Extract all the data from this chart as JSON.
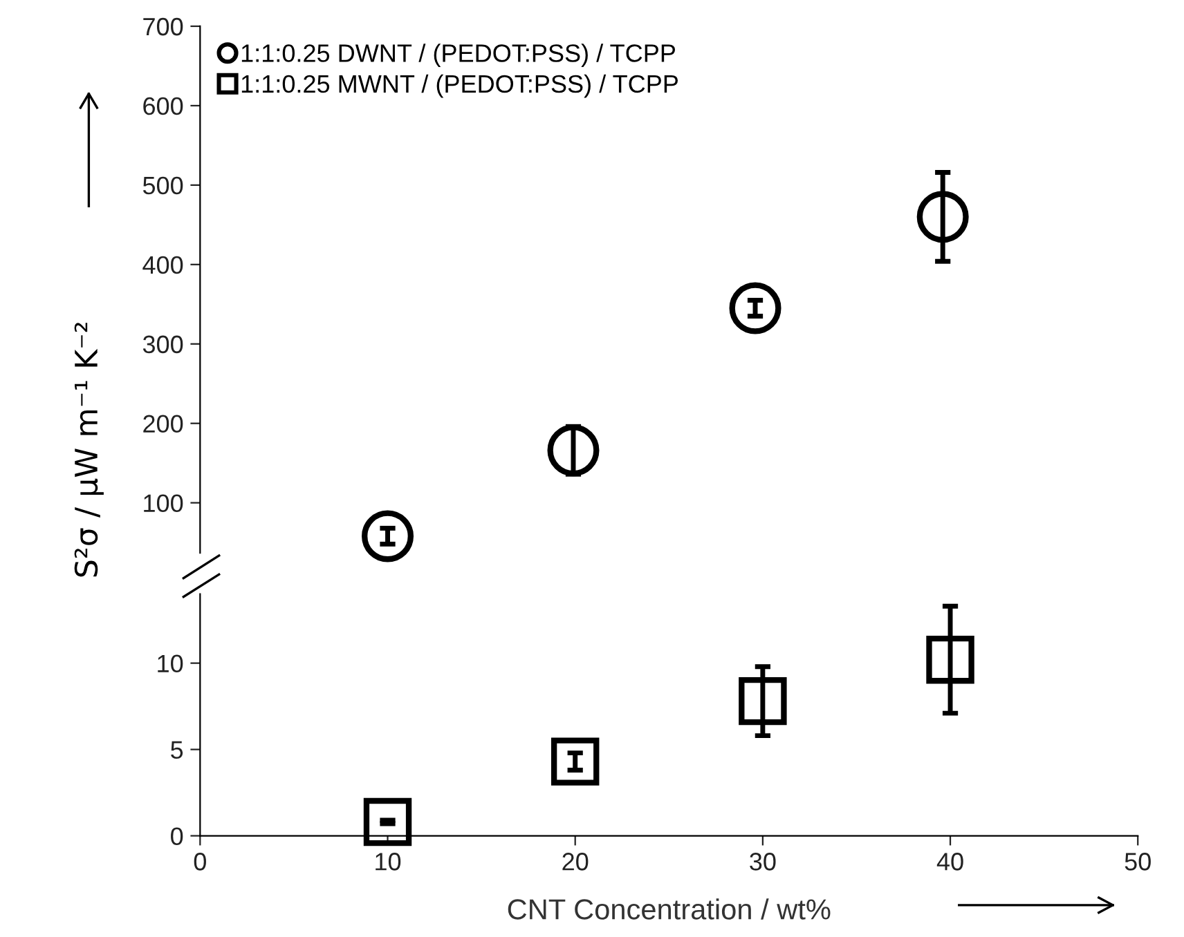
{
  "chart_data": [
    {
      "type": "scatter",
      "ylabel": "S²σ / μW m⁻¹ K⁻²",
      "xlim": [
        0,
        50
      ],
      "ylim": [
        37,
        700
      ],
      "yticks": [
        100,
        200,
        300,
        400,
        500,
        600,
        700
      ],
      "tick_labels": "y",
      "legend": "top left",
      "grid": false,
      "marker": "circle",
      "series": [
        {
          "name": "1:1:0.25 DWNT / (PEDOT:PSS) / TCPP",
          "color": "#000000",
          "x": [
            10,
            19.9,
            29.6,
            39.6
          ],
          "values": [
            58,
            166,
            345,
            460
          ],
          "errors": [
            10,
            30,
            10,
            56
          ]
        }
      ]
    },
    {
      "type": "scatter",
      "xlabel": "CNT Concentration / wt%",
      "xlim": [
        0,
        50
      ],
      "ylim": [
        0,
        14
      ],
      "xticks": [
        0,
        10,
        20,
        30,
        40,
        50
      ],
      "yticks": [
        0,
        5,
        10
      ],
      "grid": false,
      "marker": "square",
      "series": [
        {
          "name": "1:1:0.25 MWNT / (PEDOT:PSS) / TCPP",
          "color": "#000000",
          "x": [
            10,
            20,
            30,
            40
          ],
          "values": [
            0.8,
            4.3,
            7.8,
            10.2
          ],
          "errors": [
            0.1,
            0.5,
            2,
            3.1
          ]
        }
      ]
    }
  ]
}
